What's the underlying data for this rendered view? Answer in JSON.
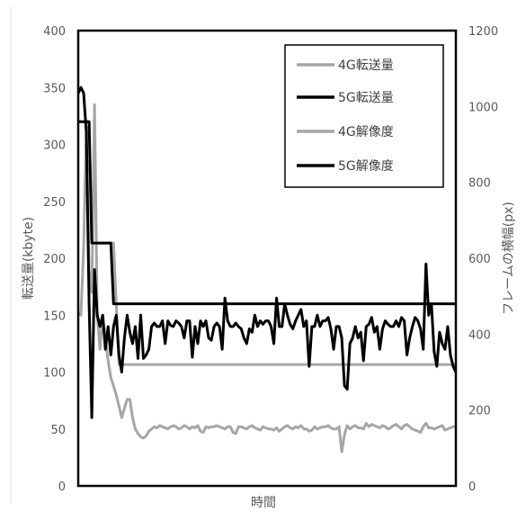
{
  "chart_data": {
    "type": "line",
    "title": "",
    "xlabel": "時間",
    "ylabel_left": "転送量(kbyte)",
    "ylabel_right": "フレームの横幅(px)",
    "ylim_left": [
      0,
      400
    ],
    "ylim_right": [
      0,
      1200
    ],
    "yticks_left": [
      "0",
      "50",
      "100",
      "150",
      "200",
      "250",
      "300",
      "350",
      "400"
    ],
    "yticks_right": [
      "0",
      "200",
      "400",
      "600",
      "800",
      "1000",
      "1200"
    ],
    "grid": false,
    "legend_position": "top-right",
    "x_points": 140,
    "series": [
      {
        "name": "4G転送量",
        "axis": "left",
        "color": "#a6a6a6",
        "values": [
          152,
          150,
          210,
          315,
          190,
          170,
          335,
          150,
          120,
          150,
          130,
          110,
          95,
          88,
          80,
          70,
          60,
          68,
          76,
          76,
          60,
          50,
          46,
          43,
          42,
          44,
          48,
          50,
          52,
          51,
          53,
          52,
          51,
          50,
          52,
          53,
          52,
          50,
          51,
          53,
          52,
          50,
          52,
          51,
          53,
          48,
          47,
          52,
          51,
          52,
          52,
          53,
          52,
          51,
          50,
          52,
          52,
          47,
          46,
          52,
          52,
          51,
          50,
          52,
          53,
          51,
          50,
          49,
          52,
          51,
          50,
          50,
          49,
          51,
          48,
          50,
          52,
          53,
          51,
          50,
          52,
          51,
          53,
          50,
          50,
          48,
          49,
          52,
          50,
          51,
          52,
          52,
          53,
          51,
          50,
          50,
          52,
          30,
          45,
          53,
          50,
          52,
          53,
          51,
          51,
          50,
          55,
          52,
          54,
          53,
          52,
          51,
          53,
          52,
          50,
          51,
          53,
          54,
          52,
          50,
          53,
          54,
          52,
          50,
          49,
          48,
          47,
          52,
          55,
          51,
          51,
          50,
          51,
          52,
          53,
          49,
          50,
          51,
          52,
          52
        ]
      },
      {
        "name": "5G転送量",
        "axis": "left",
        "color": "#000000",
        "values": [
          345,
          350,
          345,
          310,
          160,
          60,
          190,
          150,
          140,
          150,
          120,
          140,
          115,
          140,
          150,
          115,
          100,
          130,
          150,
          135,
          125,
          140,
          112,
          150,
          112,
          115,
          120,
          140,
          143,
          140,
          140,
          145,
          125,
          145,
          141,
          140,
          145,
          143,
          140,
          130,
          145,
          145,
          113,
          140,
          125,
          145,
          140,
          145,
          130,
          128,
          140,
          143,
          140,
          120,
          165,
          145,
          140,
          140,
          143,
          140,
          138,
          130,
          125,
          138,
          135,
          150,
          140,
          145,
          142,
          145,
          145,
          140,
          125,
          165,
          140,
          140,
          160,
          150,
          142,
          138,
          145,
          150,
          155,
          140,
          145,
          105,
          140,
          140,
          150,
          140,
          145,
          145,
          148,
          138,
          120,
          140,
          140,
          130,
          88,
          85,
          125,
          130,
          140,
          130,
          135,
          110,
          140,
          142,
          148,
          135,
          140,
          120,
          138,
          145,
          142,
          140,
          140,
          145,
          140,
          148,
          145,
          115,
          130,
          140,
          148,
          145,
          138,
          120,
          195,
          150,
          160,
          118,
          105,
          135,
          125,
          120,
          140,
          115,
          105,
          100
        ]
      },
      {
        "name": "4G解像度",
        "axis": "right",
        "values": [
          960,
          960,
          960,
          960,
          960,
          640,
          640,
          640,
          640,
          640,
          640,
          640,
          640,
          640,
          480,
          320,
          320,
          320,
          320,
          320,
          320,
          320,
          320,
          320,
          320,
          320,
          320,
          320,
          320,
          320,
          320,
          320,
          320,
          320,
          320,
          320,
          320,
          320,
          320,
          320,
          320,
          320,
          320,
          320,
          320,
          320,
          320,
          320,
          320,
          320,
          320,
          320,
          320,
          320,
          320,
          320,
          320,
          320,
          320,
          320,
          320,
          320,
          320,
          320,
          320,
          320,
          320,
          320,
          320,
          320,
          320,
          320,
          320,
          320,
          320,
          320,
          320,
          320,
          320,
          320,
          320,
          320,
          320,
          320,
          320,
          320,
          320,
          320,
          320,
          320,
          320,
          320,
          320,
          320,
          320,
          320,
          320,
          320,
          320,
          320,
          320,
          320,
          320,
          320,
          320,
          320,
          320,
          320,
          320,
          320,
          320,
          320,
          320,
          320,
          320,
          320,
          320,
          320,
          320,
          320,
          320,
          320,
          320,
          320,
          320,
          320,
          320,
          320,
          320,
          320,
          320,
          320,
          320,
          320,
          320,
          320,
          320,
          320,
          320,
          320
        ],
        "color": "#a6a6a6"
      },
      {
        "name": "5G解像度",
        "axis": "right",
        "values": [
          960,
          960,
          960,
          960,
          960,
          640,
          640,
          640,
          640,
          640,
          640,
          640,
          640,
          480,
          480,
          480,
          480,
          480,
          480,
          480,
          480,
          480,
          480,
          480,
          480,
          480,
          480,
          480,
          480,
          480,
          480,
          480,
          480,
          480,
          480,
          480,
          480,
          480,
          480,
          480,
          480,
          480,
          480,
          480,
          480,
          480,
          480,
          480,
          480,
          480,
          480,
          480,
          480,
          480,
          480,
          480,
          480,
          480,
          480,
          480,
          480,
          480,
          480,
          480,
          480,
          480,
          480,
          480,
          480,
          480,
          480,
          480,
          480,
          480,
          480,
          480,
          480,
          480,
          480,
          480,
          480,
          480,
          480,
          480,
          480,
          480,
          480,
          480,
          480,
          480,
          480,
          480,
          480,
          480,
          480,
          480,
          480,
          480,
          480,
          480,
          480,
          480,
          480,
          480,
          480,
          480,
          480,
          480,
          480,
          480,
          480,
          480,
          480,
          480,
          480,
          480,
          480,
          480,
          480,
          480,
          480,
          480,
          480,
          480,
          480,
          480,
          480,
          480,
          480,
          480,
          480,
          480,
          480,
          480,
          480,
          480,
          480,
          480,
          480,
          480
        ],
        "color": "#000000"
      }
    ]
  }
}
